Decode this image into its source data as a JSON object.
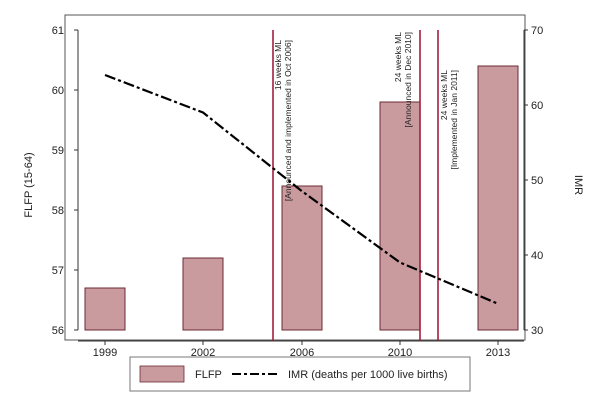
{
  "chart_data": {
    "type": "bar",
    "categories": [
      "1999",
      "2002",
      "2006",
      "2010",
      "2013"
    ],
    "series": [
      {
        "name": "FLFP",
        "type": "bar",
        "axis": "left",
        "values": [
          56.7,
          57.2,
          58.4,
          59.8,
          60.4
        ],
        "color": "#c99a9e",
        "stroke": "#6b2a35"
      },
      {
        "name": "IMR (deaths per 1000 live births)",
        "type": "line",
        "axis": "right",
        "style": "dashed",
        "x": [
          1999,
          2002,
          2006,
          2010,
          2013
        ],
        "values": [
          64,
          59,
          48.5,
          39,
          33.5
        ],
        "color": "#000000"
      }
    ],
    "ylabel_left": "FLFP (15-64)",
    "ylabel_right": "IMR",
    "ylim_left": [
      56,
      61
    ],
    "ylim_right": [
      30,
      70
    ],
    "yticks_left": [
      "56",
      "57",
      "58",
      "59",
      "60",
      "61"
    ],
    "yticks_right": [
      "30",
      "40",
      "50",
      "60",
      "70"
    ],
    "grid": false,
    "legend_position": "bottom",
    "annotations": [
      {
        "line_color": "#a31f3d",
        "line1": "16 weeks ML",
        "line2": "[Announced and implemented in Oct 2006]"
      },
      {
        "line_color": "#a31f3d",
        "line1": "24 weeks ML",
        "line2": "[Announced in Dec 2010]"
      },
      {
        "line_color": "#a31f3d",
        "line1": "24 weeks ML",
        "line2": "[Implemented in Jan 2011]"
      }
    ]
  }
}
